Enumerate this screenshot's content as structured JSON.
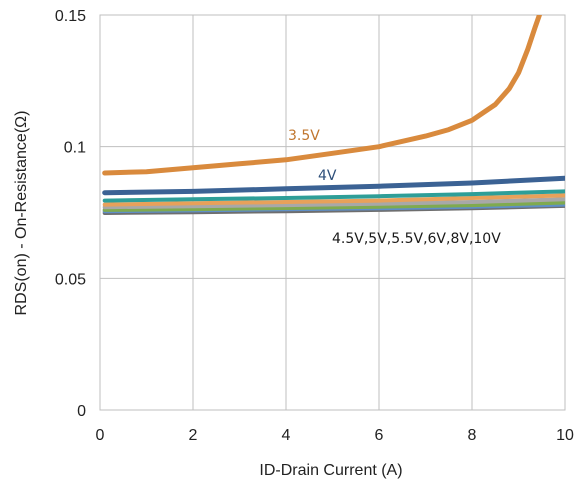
{
  "chart_data": {
    "type": "line",
    "xlabel": "ID-Drain Current (A)",
    "ylabel": "RDS(on) - On-Resistance(Ω)",
    "xlim": [
      0,
      10
    ],
    "ylim": [
      0,
      0.15
    ],
    "x_ticks": [
      "0",
      "2",
      "4",
      "6",
      "8",
      "10"
    ],
    "y_ticks": [
      "0",
      "0.05",
      "0.1",
      "0.15"
    ],
    "x_tick_values": [
      0,
      2,
      4,
      6,
      8,
      10
    ],
    "y_tick_values": [
      0,
      0.05,
      0.1,
      0.15
    ],
    "grid": true,
    "legend": "none",
    "annotations": [
      {
        "text": "3.5V",
        "color": "#C0762E"
      },
      {
        "text": "4V",
        "color": "#2E4F7A"
      },
      {
        "text": "4.5V,5V,5.5V,6V,8V,10V",
        "color": "#1a1a1a"
      }
    ],
    "series": [
      {
        "label_ref": "3.5V",
        "color": "#D98A3D",
        "x": [
          0.1,
          1,
          2,
          3,
          4,
          5,
          6,
          7,
          7.5,
          8,
          8.5,
          8.8,
          9.0,
          9.2,
          9.35,
          9.45,
          9.5
        ],
        "y": [
          0.09,
          0.0905,
          0.092,
          0.0935,
          0.095,
          0.0975,
          0.1,
          0.104,
          0.1065,
          0.11,
          0.116,
          0.122,
          0.128,
          0.137,
          0.145,
          0.15,
          0.153
        ]
      },
      {
        "label_ref": "4V",
        "color": "#3B6294",
        "x": [
          0.1,
          2,
          4,
          6,
          8,
          10
        ],
        "y": [
          0.0825,
          0.083,
          0.084,
          0.085,
          0.0862,
          0.088
        ]
      },
      {
        "label_ref": "4.5V",
        "color": "#2E9E98",
        "x": [
          0.1,
          2,
          4,
          6,
          8,
          10
        ],
        "y": [
          0.0795,
          0.08,
          0.0805,
          0.0812,
          0.082,
          0.083
        ]
      },
      {
        "label_ref": "5V",
        "color": "#E8A15A",
        "x": [
          0.1,
          2,
          4,
          6,
          8,
          10
        ],
        "y": [
          0.078,
          0.0785,
          0.079,
          0.0795,
          0.0805,
          0.0815
        ]
      },
      {
        "label_ref": "5.5V",
        "color": "#A8A8A8",
        "x": [
          0.1,
          2,
          4,
          6,
          8,
          10
        ],
        "y": [
          0.077,
          0.0774,
          0.0778,
          0.0783,
          0.079,
          0.08
        ]
      },
      {
        "label_ref": "6V",
        "color": "#7FAA4F",
        "x": [
          0.1,
          2,
          4,
          6,
          8,
          10
        ],
        "y": [
          0.076,
          0.0763,
          0.0767,
          0.0772,
          0.0778,
          0.0788
        ]
      },
      {
        "label_ref": "8V",
        "color": "#5F8FC7",
        "x": [
          0.1,
          2,
          4,
          6,
          8,
          10
        ],
        "y": [
          0.0755,
          0.0758,
          0.0762,
          0.0766,
          0.0772,
          0.078
        ]
      },
      {
        "label_ref": "10V",
        "color": "#6E6E6E",
        "x": [
          0.1,
          2,
          4,
          6,
          8,
          10
        ],
        "y": [
          0.0748,
          0.0751,
          0.0755,
          0.076,
          0.0766,
          0.0775
        ]
      }
    ]
  }
}
